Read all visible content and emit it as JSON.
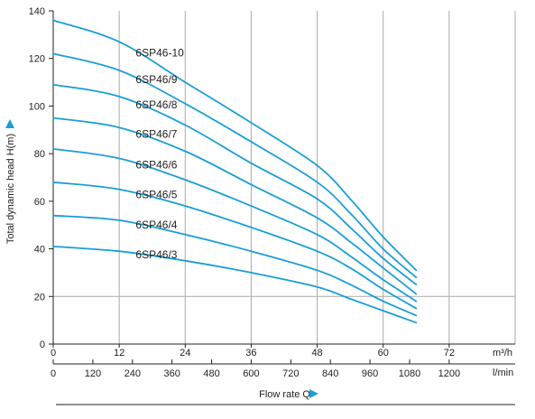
{
  "chart_data": {
    "type": "line",
    "ylabel": "Total dynamic head H(m)",
    "xlabel": "Flow rate Q",
    "x_unit_primary": "m³/h",
    "x_unit_secondary": "l/min",
    "x_ticks_primary": [
      "0",
      "12",
      "24",
      "36",
      "48",
      "60",
      "72"
    ],
    "x_ticks_secondary": [
      "0",
      "120",
      "240",
      "360",
      "480",
      "600",
      "720",
      "840",
      "960",
      "1080",
      "1200"
    ],
    "y_ticks": [
      "0",
      "20",
      "40",
      "60",
      "80",
      "100",
      "120",
      "140"
    ],
    "xlim": [
      0,
      84
    ],
    "ylim": [
      0,
      140
    ],
    "grid": true,
    "grid_horizontal_at": [
      20
    ],
    "series_color": "#1a9ed6",
    "series": [
      {
        "name": "6SP46-10",
        "x": [
          0,
          12,
          24,
          36,
          48,
          54,
          60,
          66
        ],
        "y": [
          136,
          127,
          110,
          93,
          75,
          61,
          45,
          31
        ]
      },
      {
        "name": "6SP46/9",
        "x": [
          0,
          12,
          24,
          36,
          48,
          54,
          60,
          66
        ],
        "y": [
          122,
          115,
          101,
          85,
          68,
          55,
          40,
          28
        ]
      },
      {
        "name": "6SP46/8",
        "x": [
          0,
          12,
          24,
          36,
          48,
          54,
          60,
          66
        ],
        "y": [
          109,
          104,
          92,
          76,
          61,
          49,
          36,
          25
        ]
      },
      {
        "name": "6SP46/7",
        "x": [
          0,
          12,
          24,
          36,
          48,
          54,
          60,
          66
        ],
        "y": [
          95,
          91,
          81,
          67,
          53,
          43,
          32,
          21
        ]
      },
      {
        "name": "6SP46/6",
        "x": [
          0,
          12,
          24,
          36,
          48,
          54,
          60,
          66
        ],
        "y": [
          82,
          78,
          69,
          58,
          46,
          37,
          27,
          18
        ]
      },
      {
        "name": "6SP46/5",
        "x": [
          0,
          12,
          24,
          36,
          48,
          54,
          60,
          66
        ],
        "y": [
          68,
          65,
          58,
          49,
          39,
          32,
          23,
          15
        ]
      },
      {
        "name": "6SP46/4",
        "x": [
          0,
          12,
          24,
          36,
          48,
          54,
          60,
          66
        ],
        "y": [
          54,
          52,
          46,
          39,
          31,
          25,
          18,
          12
        ]
      },
      {
        "name": "6SP46/3",
        "x": [
          0,
          12,
          24,
          36,
          48,
          54,
          60,
          66
        ],
        "y": [
          41,
          39,
          35,
          30,
          24,
          19,
          14,
          9
        ]
      }
    ]
  }
}
